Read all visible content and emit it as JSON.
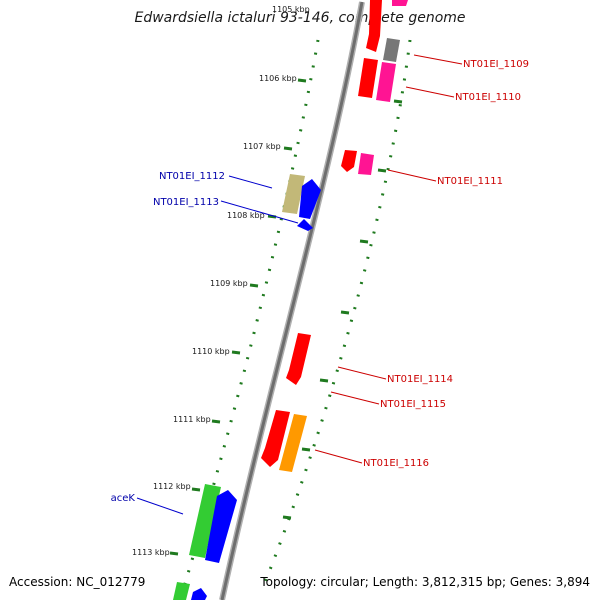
{
  "title": "Edwardsiella ictaluri 93-146, complete genome",
  "footer": {
    "accession": "Accession: NC_012779",
    "summary": "Topology: circular; Length: 3,812,315 bp; Genes: 3,894"
  },
  "tick_labels": [
    "1105 kbp",
    "1106 kbp",
    "1107 kbp",
    "1108 kbp",
    "1109 kbp",
    "1110 kbp",
    "1111 kbp",
    "1112 kbp",
    "1113 kbp"
  ],
  "gene_labels": {
    "nt01ei_1109": "NT01EI_1109",
    "nt01ei_1110": "NT01EI_1110",
    "nt01ei_1111": "NT01EI_1111",
    "nt01ei_1112": "NT01EI_1112",
    "nt01ei_1113": "NT01EI_1113",
    "nt01ei_1114": "NT01EI_1114",
    "nt01ei_1115": "NT01EI_1115",
    "nt01ei_1116": "NT01EI_1116",
    "acek": "aceK"
  },
  "colors": {
    "backbone": "#8c8c8c",
    "tick": "#1f7a1f",
    "forward_label": "#cc0000",
    "reverse_label": "#0000aa",
    "red_gene": "#ff0000",
    "pink_gene": "#ff1493",
    "gray_gene": "#777777",
    "khaki_gene": "#c2b878",
    "blue_gene": "#0000ff",
    "orange_gene": "#ff9900",
    "green_gene": "#33cc33"
  }
}
